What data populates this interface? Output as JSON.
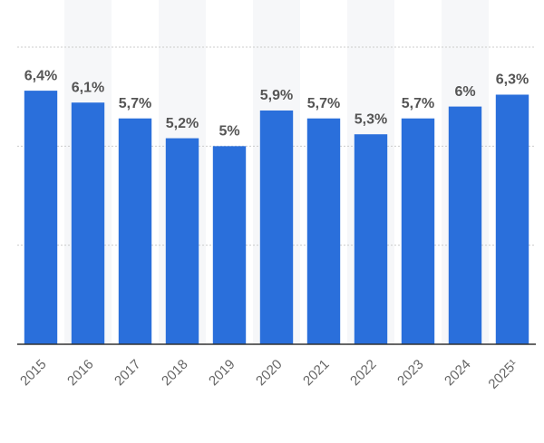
{
  "chart_data": {
    "type": "bar",
    "categories": [
      "2015",
      "2016",
      "2017",
      "2018",
      "2019",
      "2020",
      "2021",
      "2022",
      "2023",
      "2024",
      "2025¹"
    ],
    "values": [
      6.4,
      6.1,
      5.7,
      5.2,
      5,
      5.9,
      5.7,
      5.3,
      5.7,
      6,
      6.3
    ],
    "value_labels": [
      "6,4%",
      "6,1%",
      "5,7%",
      "5,2%",
      "5%",
      "5,9%",
      "5,7%",
      "5,3%",
      "5,7%",
      "6%",
      "6,3%"
    ],
    "color": "#2a6fdb",
    "ylim": [
      0,
      7.5
    ],
    "yticks": [
      0,
      2.5,
      5,
      7.5
    ],
    "grid": true
  }
}
